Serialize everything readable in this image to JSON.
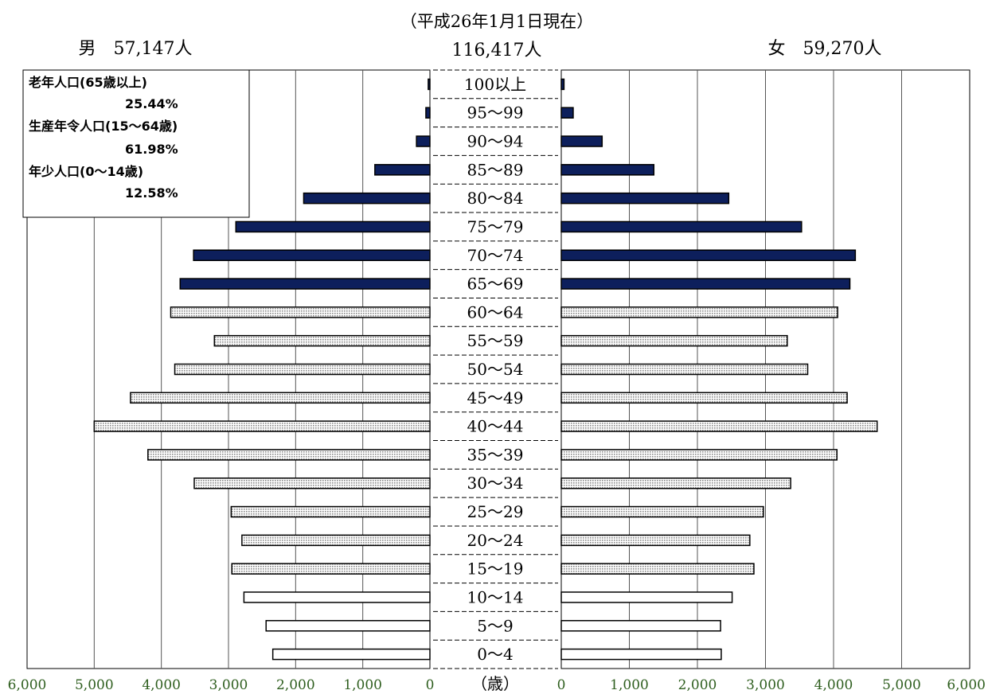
{
  "header": {
    "date_note": "（平成26年1月1日現在）",
    "total": "116,417人",
    "male_label": "男　57,147人",
    "female_label": "女　59,270人"
  },
  "legend": {
    "elderly_label": "老年人口(65歳以上)",
    "elderly_pct": "25.44%",
    "working_label": "生産年令人口(15～64歳)",
    "working_pct": "61.98%",
    "youth_label": "年少人口(0～14歳)",
    "youth_pct": "12.58%"
  },
  "colors": {
    "elderly": "#0d1f5c",
    "working_dots": "#9a9a9a",
    "youth": "#ffffff",
    "tick_green": "#2e5e1e"
  },
  "chart_data": {
    "type": "bar",
    "orientation": "horizontal",
    "subtype": "population pyramid",
    "unit_label": "（歳）",
    "categories": [
      "100以上",
      "95～99",
      "90～94",
      "85～89",
      "80～84",
      "75～79",
      "70～74",
      "65～69",
      "60～64",
      "55～59",
      "50～54",
      "45～49",
      "40～44",
      "35～39",
      "30～34",
      "25～29",
      "20～24",
      "15～19",
      "10～14",
      "5～9",
      "0～4"
    ],
    "series": [
      {
        "name": "男",
        "values": [
          25,
          60,
          200,
          820,
          1880,
          2890,
          3520,
          3720,
          3860,
          3210,
          3800,
          4460,
          5000,
          4200,
          3510,
          2960,
          2800,
          2950,
          2770,
          2440,
          2340
        ]
      },
      {
        "name": "女",
        "values": [
          40,
          175,
          600,
          1360,
          2460,
          3530,
          4320,
          4240,
          4060,
          3320,
          3620,
          4200,
          4640,
          4050,
          3370,
          2970,
          2770,
          2830,
          2510,
          2340,
          2350
        ]
      }
    ],
    "age_group_class": [
      "elderly",
      "elderly",
      "elderly",
      "elderly",
      "elderly",
      "elderly",
      "elderly",
      "elderly",
      "working",
      "working",
      "working",
      "working",
      "working",
      "working",
      "working",
      "working",
      "working",
      "working",
      "youth",
      "youth",
      "youth"
    ],
    "xlim": [
      0,
      6000
    ],
    "x_ticks_left": [
      "6,000",
      "5,000",
      "4,000",
      "3,000",
      "2,000",
      "1,000",
      "0"
    ],
    "x_ticks_right": [
      "0",
      "1,000",
      "2,000",
      "3,000",
      "4,000",
      "5,000",
      "6,000"
    ],
    "grid": true
  }
}
